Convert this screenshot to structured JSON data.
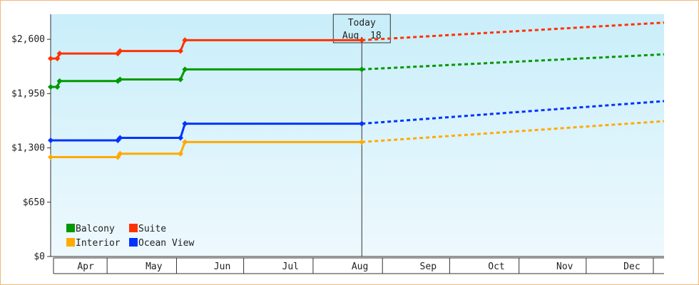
{
  "chart_data": {
    "type": "line",
    "title": "",
    "xlabel": "",
    "ylabel": "",
    "x_axis": {
      "type": "date",
      "range": [
        "2024-04-01",
        "2024-12-31"
      ],
      "month_labels": [
        "Apr",
        "May",
        "Jun",
        "Jul",
        "Aug",
        "Sep",
        "Oct",
        "Nov",
        "Dec"
      ]
    },
    "y_axis": {
      "ylim": [
        0,
        2900
      ],
      "ticks": [
        0,
        650,
        1300,
        1950,
        2600
      ],
      "tick_labels": [
        "$0",
        "$650",
        "$1,300",
        "$1,950",
        "$2,600"
      ]
    },
    "grid": false,
    "background": {
      "top": "#c9eefa",
      "bottom": "#eef9fd"
    },
    "legend": {
      "position": "bottom-left"
    },
    "today_marker": {
      "date": "2024-08-18",
      "line1": "Today",
      "line2": "Aug. 18"
    },
    "series": [
      {
        "name": "Suite",
        "color": "#ff3300",
        "points": [
          {
            "date": "2024-04-01",
            "value": 2370
          },
          {
            "date": "2024-04-04",
            "value": 2370
          },
          {
            "date": "2024-04-05",
            "value": 2430
          },
          {
            "date": "2024-05-01",
            "value": 2430
          },
          {
            "date": "2024-05-02",
            "value": 2460
          },
          {
            "date": "2024-05-29",
            "value": 2460
          },
          {
            "date": "2024-05-31",
            "value": 2590
          },
          {
            "date": "2024-08-18",
            "value": 2590
          }
        ],
        "forecast": [
          {
            "date": "2024-08-18",
            "value": 2590
          },
          {
            "date": "2024-12-31",
            "value": 2800
          }
        ]
      },
      {
        "name": "Balcony",
        "color": "#009900",
        "points": [
          {
            "date": "2024-04-01",
            "value": 2030
          },
          {
            "date": "2024-04-04",
            "value": 2030
          },
          {
            "date": "2024-04-05",
            "value": 2100
          },
          {
            "date": "2024-05-01",
            "value": 2100
          },
          {
            "date": "2024-05-02",
            "value": 2120
          },
          {
            "date": "2024-05-29",
            "value": 2120
          },
          {
            "date": "2024-05-31",
            "value": 2240
          },
          {
            "date": "2024-08-18",
            "value": 2240
          }
        ],
        "forecast": [
          {
            "date": "2024-08-18",
            "value": 2240
          },
          {
            "date": "2024-12-31",
            "value": 2420
          }
        ]
      },
      {
        "name": "Ocean View",
        "color": "#0033ff",
        "points": [
          {
            "date": "2024-04-01",
            "value": 1390
          },
          {
            "date": "2024-05-01",
            "value": 1390
          },
          {
            "date": "2024-05-02",
            "value": 1420
          },
          {
            "date": "2024-05-29",
            "value": 1420
          },
          {
            "date": "2024-05-31",
            "value": 1590
          },
          {
            "date": "2024-08-18",
            "value": 1590
          }
        ],
        "forecast": [
          {
            "date": "2024-08-18",
            "value": 1590
          },
          {
            "date": "2024-12-31",
            "value": 1860
          }
        ]
      },
      {
        "name": "Interior",
        "color": "#ffaa00",
        "points": [
          {
            "date": "2024-04-01",
            "value": 1190
          },
          {
            "date": "2024-05-01",
            "value": 1190
          },
          {
            "date": "2024-05-02",
            "value": 1230
          },
          {
            "date": "2024-05-29",
            "value": 1230
          },
          {
            "date": "2024-05-31",
            "value": 1370
          },
          {
            "date": "2024-08-18",
            "value": 1370
          }
        ],
        "forecast": [
          {
            "date": "2024-08-18",
            "value": 1370
          },
          {
            "date": "2024-12-31",
            "value": 1620
          }
        ]
      }
    ],
    "legend_order": [
      "Balcony",
      "Suite",
      "Interior",
      "Ocean View"
    ]
  }
}
